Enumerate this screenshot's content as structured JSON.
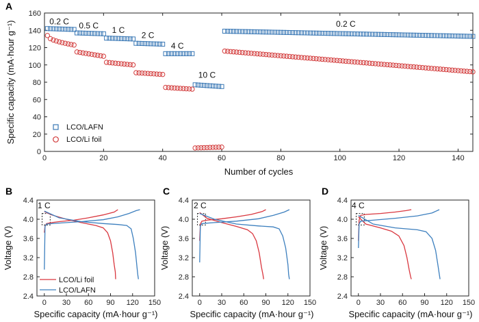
{
  "chart_data": [
    {
      "panel": "A",
      "type": "scatter",
      "xlabel": "Number of cycles",
      "ylabel": "Specific capacity (mA·hour g⁻¹)",
      "xlim": [
        0,
        145
      ],
      "ylim": [
        0,
        160
      ],
      "xticks": [
        0,
        20,
        40,
        60,
        80,
        100,
        120,
        140
      ],
      "yticks": [
        0,
        20,
        40,
        60,
        80,
        100,
        120,
        140,
        160
      ],
      "legend_position": "bottom-left",
      "rate_labels": [
        {
          "text": "0.2 C",
          "x": 5,
          "y": 147
        },
        {
          "text": "0.5 C",
          "x": 15,
          "y": 142
        },
        {
          "text": "1 C",
          "x": 25,
          "y": 137
        },
        {
          "text": "2 C",
          "x": 35,
          "y": 131
        },
        {
          "text": "4 C",
          "x": 45,
          "y": 119
        },
        {
          "text": "10 C",
          "x": 55,
          "y": 85
        },
        {
          "text": "0.2 C",
          "x": 102,
          "y": 144
        }
      ],
      "series": [
        {
          "name": "LCO/LAFN",
          "marker": "square",
          "color": "#3a78b5",
          "segments": [
            {
              "start": 1,
              "end": 10,
              "y0": 142,
              "y1": 141
            },
            {
              "start": 11,
              "end": 20,
              "y0": 137,
              "y1": 136
            },
            {
              "start": 21,
              "end": 30,
              "y0": 131,
              "y1": 130
            },
            {
              "start": 31,
              "end": 40,
              "y0": 125,
              "y1": 124
            },
            {
              "start": 41,
              "end": 50,
              "y0": 113,
              "y1": 113
            },
            {
              "start": 51,
              "end": 60,
              "y0": 77,
              "y1": 75
            },
            {
              "start": 61,
              "end": 145,
              "y0": 139,
              "y1": 133
            }
          ]
        },
        {
          "name": "LCO/Li foil",
          "marker": "circle",
          "color": "#d23a3a",
          "segments": [
            {
              "start": 1,
              "end": 10,
              "y0": 134,
              "y1": 123
            },
            {
              "start": 11,
              "end": 20,
              "y0": 115,
              "y1": 110
            },
            {
              "start": 21,
              "end": 30,
              "y0": 103,
              "y1": 100
            },
            {
              "start": 31,
              "end": 40,
              "y0": 91,
              "y1": 89
            },
            {
              "start": 41,
              "end": 50,
              "y0": 74,
              "y1": 72
            },
            {
              "start": 51,
              "end": 60,
              "y0": 4,
              "y1": 5
            },
            {
              "start": 61,
              "end": 145,
              "y0": 116,
              "y1": 92
            }
          ]
        }
      ]
    },
    {
      "panel": "B",
      "type": "line",
      "rate": "1 C",
      "xlabel": "Specific capacity (mA·hour g⁻¹)",
      "ylabel": "Voltage (V)",
      "xlim": [
        -10,
        150
      ],
      "ylim": [
        2.4,
        4.4
      ],
      "xticks": [
        0,
        30,
        60,
        90,
        120,
        150
      ],
      "yticks": [
        2.4,
        2.8,
        3.2,
        3.6,
        4.0,
        4.4
      ],
      "legend_position": "bottom-left",
      "series": [
        {
          "name": "LCO/Li foil",
          "color": "#d9363e",
          "charge": [
            [
              0,
              3.72
            ],
            [
              1,
              3.86
            ],
            [
              3,
              3.91
            ],
            [
              10,
              3.93
            ],
            [
              20,
              3.95
            ],
            [
              40,
              3.98
            ],
            [
              60,
              4.03
            ],
            [
              80,
              4.09
            ],
            [
              95,
              4.15
            ],
            [
              100,
              4.2
            ]
          ],
          "discharge": [
            [
              0,
              4.16
            ],
            [
              10,
              4.09
            ],
            [
              30,
              4.0
            ],
            [
              50,
              3.93
            ],
            [
              70,
              3.87
            ],
            [
              80,
              3.82
            ],
            [
              86,
              3.72
            ],
            [
              90,
              3.55
            ],
            [
              93,
              3.3
            ],
            [
              95,
              3.05
            ],
            [
              96.5,
              2.9
            ],
            [
              97,
              2.75
            ]
          ]
        },
        {
          "name": "LCO/LAFN",
          "color": "#3c7fbe",
          "charge": [
            [
              0,
              2.95
            ],
            [
              1,
              3.85
            ],
            [
              3,
              3.9
            ],
            [
              20,
              3.92
            ],
            [
              50,
              3.95
            ],
            [
              80,
              3.99
            ],
            [
              100,
              4.05
            ],
            [
              115,
              4.12
            ],
            [
              125,
              4.18
            ],
            [
              130,
              4.2
            ]
          ],
          "discharge": [
            [
              0,
              4.17
            ],
            [
              20,
              4.03
            ],
            [
              50,
              3.95
            ],
            [
              80,
              3.91
            ],
            [
              100,
              3.89
            ],
            [
              112,
              3.87
            ],
            [
              118,
              3.8
            ],
            [
              121,
              3.6
            ],
            [
              124,
              3.3
            ],
            [
              126,
              3.0
            ],
            [
              127,
              2.85
            ],
            [
              128,
              2.75
            ]
          ]
        }
      ]
    },
    {
      "panel": "C",
      "type": "line",
      "rate": "2 C",
      "xlabel": "Specific capacity (mA·hour g⁻¹)",
      "ylabel": "Voltage (V)",
      "xlim": [
        -10,
        150
      ],
      "ylim": [
        2.4,
        4.4
      ],
      "xticks": [
        0,
        30,
        60,
        90,
        120,
        150
      ],
      "yticks": [
        2.4,
        2.8,
        3.2,
        3.6,
        4.0,
        4.4
      ],
      "series": [
        {
          "name": "LCO/Li foil",
          "color": "#d9363e",
          "charge": [
            [
              0,
              3.55
            ],
            [
              1,
              3.9
            ],
            [
              3,
              3.96
            ],
            [
              10,
              3.98
            ],
            [
              30,
              4.01
            ],
            [
              50,
              4.05
            ],
            [
              70,
              4.1
            ],
            [
              85,
              4.16
            ],
            [
              90,
              4.2
            ]
          ],
          "discharge": [
            [
              0,
              4.14
            ],
            [
              10,
              4.02
            ],
            [
              30,
              3.93
            ],
            [
              50,
              3.85
            ],
            [
              65,
              3.78
            ],
            [
              72,
              3.7
            ],
            [
              77,
              3.55
            ],
            [
              81,
              3.3
            ],
            [
              84,
              3.0
            ],
            [
              86,
              2.85
            ],
            [
              87,
              2.75
            ]
          ]
        },
        {
          "name": "LCO/LAFN",
          "color": "#3c7fbe",
          "charge": [
            [
              0,
              3.1
            ],
            [
              1,
              3.86
            ],
            [
              3,
              3.91
            ],
            [
              20,
              3.93
            ],
            [
              50,
              3.96
            ],
            [
              80,
              4.01
            ],
            [
              100,
              4.08
            ],
            [
              115,
              4.15
            ],
            [
              122,
              4.2
            ]
          ],
          "discharge": [
            [
              0,
              4.12
            ],
            [
              20,
              4.0
            ],
            [
              50,
              3.9
            ],
            [
              80,
              3.86
            ],
            [
              100,
              3.84
            ],
            [
              108,
              3.8
            ],
            [
              113,
              3.65
            ],
            [
              117,
              3.4
            ],
            [
              120,
              3.05
            ],
            [
              121,
              2.85
            ],
            [
              122,
              2.75
            ]
          ]
        }
      ]
    },
    {
      "panel": "D",
      "type": "line",
      "rate": "4 C",
      "xlabel": "Specific capacity (mA·hour g⁻¹)",
      "ylabel": "Voltage (V)",
      "xlim": [
        -10,
        150
      ],
      "ylim": [
        2.4,
        4.4
      ],
      "xticks": [
        0,
        30,
        60,
        90,
        120,
        150
      ],
      "yticks": [
        2.4,
        2.8,
        3.2,
        3.6,
        4.0,
        4.4
      ],
      "series": [
        {
          "name": "LCO/Li foil",
          "color": "#d9363e",
          "charge": [
            [
              0,
              3.55
            ],
            [
              1,
              3.98
            ],
            [
              3,
              4.08
            ],
            [
              10,
              4.1
            ],
            [
              30,
              4.12
            ],
            [
              50,
              4.15
            ],
            [
              65,
              4.18
            ],
            [
              72,
              4.2
            ]
          ],
          "discharge": [
            [
              0,
              4.05
            ],
            [
              10,
              3.9
            ],
            [
              30,
              3.82
            ],
            [
              45,
              3.75
            ],
            [
              55,
              3.65
            ],
            [
              62,
              3.45
            ],
            [
              66,
              3.2
            ],
            [
              69,
              2.95
            ],
            [
              71,
              2.8
            ],
            [
              72,
              2.75
            ]
          ]
        },
        {
          "name": "LCO/LAFN",
          "color": "#3c7fbe",
          "charge": [
            [
              0,
              3.4
            ],
            [
              1,
              3.9
            ],
            [
              3,
              3.96
            ],
            [
              20,
              3.98
            ],
            [
              50,
              4.02
            ],
            [
              80,
              4.07
            ],
            [
              100,
              4.13
            ],
            [
              110,
              4.2
            ]
          ],
          "discharge": [
            [
              0,
              4.08
            ],
            [
              20,
              3.9
            ],
            [
              50,
              3.82
            ],
            [
              80,
              3.78
            ],
            [
              92,
              3.74
            ],
            [
              100,
              3.6
            ],
            [
              105,
              3.35
            ],
            [
              108,
              3.05
            ],
            [
              110,
              2.85
            ],
            [
              111,
              2.75
            ]
          ]
        }
      ]
    }
  ]
}
